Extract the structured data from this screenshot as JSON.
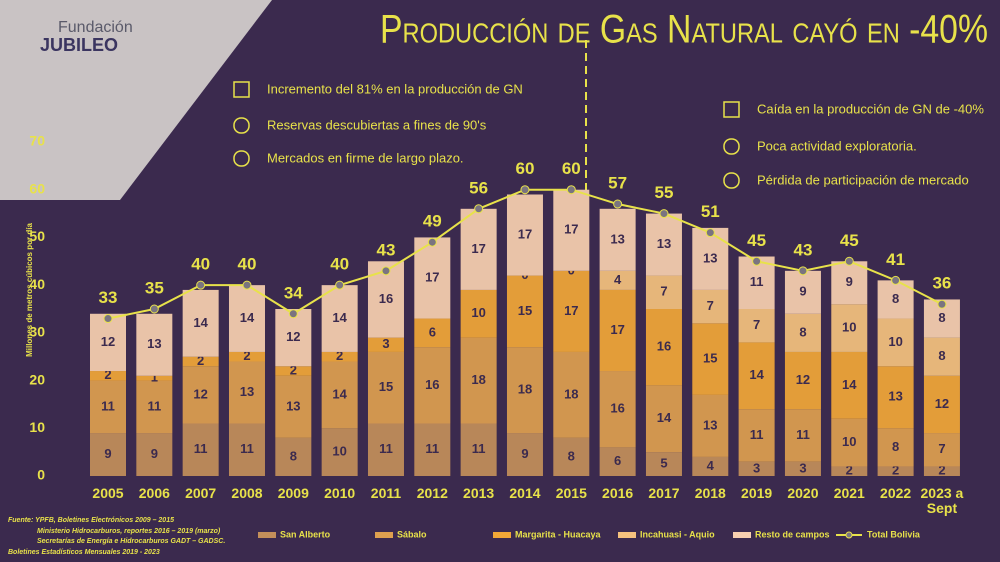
{
  "chart_data": {
    "type": "bar",
    "stacked": true,
    "title": "Producción de Gas Natural cayó en -40%",
    "y_label": "Millones de metros cúbicos por día",
    "categories": [
      "2005",
      "2006",
      "2007",
      "2008",
      "2009",
      "2010",
      "2011",
      "2012",
      "2013",
      "2014",
      "2015",
      "2016",
      "2017",
      "2018",
      "2019",
      "2020",
      "2021",
      "2022",
      "2023 a Sept"
    ],
    "series": [
      {
        "name": "San Alberto",
        "type": "bar",
        "color": "#c38f5a",
        "values": [
          9,
          9,
          11,
          11,
          8,
          10,
          11,
          11,
          11,
          9,
          8,
          6,
          5,
          4,
          3,
          3,
          2,
          2,
          2
        ]
      },
      {
        "name": "Sábalo",
        "type": "bar",
        "color": "#dea04f",
        "values": [
          11,
          11,
          12,
          13,
          13,
          14,
          15,
          16,
          18,
          18,
          18,
          16,
          14,
          13,
          11,
          11,
          10,
          8,
          7
        ]
      },
      {
        "name": "Margarita - Huacaya",
        "type": "bar",
        "color": "#f2a737",
        "values": [
          2,
          1,
          2,
          2,
          2,
          2,
          3,
          6,
          10,
          15,
          17,
          17,
          16,
          15,
          14,
          12,
          14,
          13,
          12
        ]
      },
      {
        "name": "Incahuasi - Aquio",
        "type": "bar",
        "color": "#f5c27e",
        "values": [
          null,
          null,
          null,
          null,
          null,
          null,
          null,
          null,
          null,
          0,
          0,
          4,
          7,
          7,
          7,
          8,
          10,
          10,
          8
        ]
      },
      {
        "name": "Resto de campos",
        "type": "bar",
        "color": "#f8d0b0",
        "values": [
          12,
          13,
          14,
          14,
          12,
          14,
          16,
          17,
          17,
          17,
          17,
          13,
          13,
          13,
          11,
          9,
          9,
          8,
          8
        ]
      },
      {
        "name": "Total Bolivia",
        "type": "line",
        "color": "#e8e24a",
        "values": [
          33,
          35,
          40,
          40,
          34,
          40,
          43,
          49,
          56,
          60,
          60,
          57,
          55,
          51,
          45,
          43,
          45,
          41,
          36
        ]
      }
    ],
    "ylim": [
      0,
      70
    ],
    "yticks": [
      0,
      10,
      20,
      30,
      40,
      50,
      60,
      70
    ],
    "annotations": [
      "Incremento del 81% en la producción de GN",
      "Reservas descubiertas a fines de 90's",
      "Mercados en firme de largo plazo.",
      "Caída en la producción de GN de -40%",
      "Poca actividad exploratoria.",
      "Pérdida de participación de mercado"
    ],
    "logo": [
      "Fundación",
      "JUBILEO"
    ],
    "source": [
      "Fuente: YPFB, Boletines Electrónicos 2009 – 2015",
      "Ministerio Hidrocarburos, reportes 2016 – 2019 (marzo)",
      "Secretarías de Energía e Hidrocarburos GADT – GADSC.",
      "Boletines Estadísticos Mensuales 2019 - 2023"
    ]
  }
}
